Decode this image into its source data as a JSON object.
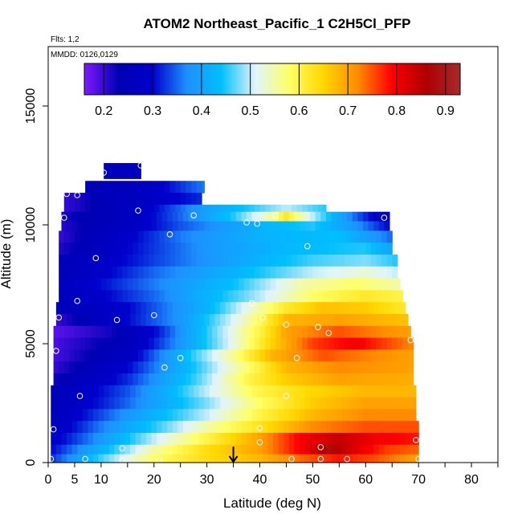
{
  "chart_data": {
    "type": "heatmap",
    "title": "ATOM2 Northeast_Pacific_1 C2H5Cl_PFP",
    "annotations": {
      "flights": "Flts: 1,2",
      "dates": "MMDD: 0126,0129"
    },
    "xlabel": "Latitude (deg N)",
    "ylabel": "Altitude (m)",
    "xlim": [
      0,
      85
    ],
    "ylim": [
      0,
      17500
    ],
    "x_ticks": [
      0,
      5,
      10,
      20,
      30,
      40,
      50,
      60,
      70,
      80
    ],
    "y_ticks": [
      0,
      5000,
      10000,
      15000
    ],
    "colorbar": {
      "range": [
        0.16,
        0.93
      ],
      "ticks": [
        0.2,
        0.3,
        0.4,
        0.5,
        0.6,
        0.7,
        0.8,
        0.9
      ],
      "tick_labels": [
        "0.2",
        "0.3",
        "0.4",
        "0.5",
        "0.6",
        "0.7",
        "0.8",
        "0.9"
      ],
      "colors": [
        "#7f1aff",
        "#0000b4",
        "#0000cd",
        "#1e90ff",
        "#00bfff",
        "#e0f4ff",
        "#ffff66",
        "#ffd700",
        "#ff8c00",
        "#ff0000",
        "#b00000",
        "#a52a2a"
      ]
    },
    "marker_latitude": 35,
    "layers": [
      {
        "alt": 12200,
        "lat_range": [
          10.5,
          17.5
        ],
        "value_points": [
          [
            10.5,
            0.25
          ],
          [
            17.5,
            0.26
          ]
        ]
      },
      {
        "alt": 11600,
        "lat_range": [
          7,
          29.5
        ],
        "value_points": [
          [
            7,
            0.24
          ],
          [
            15,
            0.25
          ],
          [
            22,
            0.3
          ],
          [
            29.5,
            0.36
          ]
        ]
      },
      {
        "alt": 11100,
        "lat_range": [
          3,
          29
        ],
        "value_points": [
          [
            3,
            0.2
          ],
          [
            12,
            0.25
          ],
          [
            20,
            0.28
          ],
          [
            29,
            0.32
          ]
        ]
      },
      {
        "alt": 10600,
        "lat_range": [
          3,
          52.5
        ],
        "value_points": [
          [
            3,
            0.2
          ],
          [
            18,
            0.28
          ],
          [
            28,
            0.38
          ],
          [
            38,
            0.45
          ],
          [
            45,
            0.5
          ],
          [
            52.5,
            0.45
          ]
        ]
      },
      {
        "alt": 10300,
        "lat_range": [
          2.5,
          64.5
        ],
        "value_points": [
          [
            2.5,
            0.22
          ],
          [
            15,
            0.26
          ],
          [
            25,
            0.35
          ],
          [
            35,
            0.45
          ],
          [
            42,
            0.55
          ],
          [
            45,
            0.62
          ],
          [
            50,
            0.5
          ],
          [
            58,
            0.35
          ],
          [
            64.5,
            0.25
          ]
        ]
      },
      {
        "alt": 9900,
        "lat_range": [
          2.5,
          64.5
        ],
        "value_points": [
          [
            2.5,
            0.21
          ],
          [
            15,
            0.27
          ],
          [
            25,
            0.34
          ],
          [
            40,
            0.42
          ],
          [
            50,
            0.45
          ],
          [
            58,
            0.38
          ],
          [
            64.5,
            0.3
          ]
        ]
      },
      {
        "alt": 9500,
        "lat_range": [
          2,
          65
        ],
        "value_points": [
          [
            2,
            0.2
          ],
          [
            12,
            0.27
          ],
          [
            25,
            0.36
          ],
          [
            40,
            0.42
          ],
          [
            55,
            0.44
          ],
          [
            65,
            0.35
          ]
        ]
      },
      {
        "alt": 9000,
        "lat_range": [
          2,
          65
        ],
        "value_points": [
          [
            2,
            0.21
          ],
          [
            15,
            0.3
          ],
          [
            30,
            0.38
          ],
          [
            45,
            0.43
          ],
          [
            60,
            0.45
          ],
          [
            65,
            0.4
          ]
        ]
      },
      {
        "alt": 8500,
        "lat_range": [
          2,
          66
        ],
        "value_points": [
          [
            2,
            0.24
          ],
          [
            20,
            0.33
          ],
          [
            35,
            0.4
          ],
          [
            50,
            0.46
          ],
          [
            60,
            0.48
          ],
          [
            66,
            0.45
          ]
        ]
      },
      {
        "alt": 8000,
        "lat_range": [
          2,
          66
        ],
        "value_points": [
          [
            2,
            0.24
          ],
          [
            20,
            0.35
          ],
          [
            35,
            0.42
          ],
          [
            50,
            0.5
          ],
          [
            60,
            0.53
          ],
          [
            66,
            0.5
          ]
        ]
      },
      {
        "alt": 7500,
        "lat_range": [
          2,
          66.5
        ],
        "value_points": [
          [
            2,
            0.26
          ],
          [
            20,
            0.36
          ],
          [
            35,
            0.44
          ],
          [
            48,
            0.55
          ],
          [
            58,
            0.58
          ],
          [
            66.5,
            0.55
          ]
        ]
      },
      {
        "alt": 7000,
        "lat_range": [
          2,
          67
        ],
        "value_points": [
          [
            2,
            0.25
          ],
          [
            20,
            0.35
          ],
          [
            38,
            0.48
          ],
          [
            50,
            0.58
          ],
          [
            60,
            0.62
          ],
          [
            67,
            0.6
          ]
        ]
      },
      {
        "alt": 6500,
        "lat_range": [
          1.5,
          67.5
        ],
        "value_points": [
          [
            1.5,
            0.24
          ],
          [
            15,
            0.3
          ],
          [
            30,
            0.42
          ],
          [
            45,
            0.62
          ],
          [
            52,
            0.67
          ],
          [
            60,
            0.66
          ],
          [
            67.5,
            0.62
          ]
        ]
      },
      {
        "alt": 6000,
        "lat_range": [
          1.5,
          68
        ],
        "value_points": [
          [
            1.5,
            0.2
          ],
          [
            12,
            0.28
          ],
          [
            25,
            0.38
          ],
          [
            38,
            0.55
          ],
          [
            45,
            0.68
          ],
          [
            55,
            0.7
          ],
          [
            68,
            0.67
          ]
        ]
      },
      {
        "alt": 5500,
        "lat_range": [
          1,
          68.5
        ],
        "value_points": [
          [
            1,
            0.18
          ],
          [
            12,
            0.22
          ],
          [
            20,
            0.3
          ],
          [
            30,
            0.45
          ],
          [
            40,
            0.6
          ],
          [
            45,
            0.7
          ],
          [
            55,
            0.75
          ],
          [
            68.5,
            0.7
          ]
        ]
      },
      {
        "alt": 5000,
        "lat_range": [
          1,
          69
        ],
        "value_points": [
          [
            1,
            0.19
          ],
          [
            15,
            0.25
          ],
          [
            25,
            0.38
          ],
          [
            35,
            0.52
          ],
          [
            42,
            0.65
          ],
          [
            50,
            0.76
          ],
          [
            58,
            0.8
          ],
          [
            69,
            0.72
          ]
        ]
      },
      {
        "alt": 4500,
        "lat_range": [
          1,
          69
        ],
        "value_points": [
          [
            1,
            0.19
          ],
          [
            15,
            0.27
          ],
          [
            25,
            0.42
          ],
          [
            35,
            0.56
          ],
          [
            42,
            0.68
          ],
          [
            52,
            0.75
          ],
          [
            62,
            0.72
          ],
          [
            69,
            0.7
          ]
        ]
      },
      {
        "alt": 4000,
        "lat_range": [
          1,
          69
        ],
        "value_points": [
          [
            1,
            0.2
          ],
          [
            15,
            0.3
          ],
          [
            28,
            0.45
          ],
          [
            38,
            0.58
          ],
          [
            45,
            0.68
          ],
          [
            55,
            0.72
          ],
          [
            69,
            0.7
          ]
        ]
      },
      {
        "alt": 3500,
        "lat_range": [
          1,
          69
        ],
        "value_points": [
          [
            1,
            0.22
          ],
          [
            15,
            0.32
          ],
          [
            28,
            0.46
          ],
          [
            38,
            0.6
          ],
          [
            45,
            0.66
          ],
          [
            55,
            0.7
          ],
          [
            69,
            0.69
          ]
        ]
      },
      {
        "alt": 3000,
        "lat_range": [
          0.5,
          69.5
        ],
        "value_points": [
          [
            0.5,
            0.24
          ],
          [
            15,
            0.34
          ],
          [
            30,
            0.5
          ],
          [
            40,
            0.6
          ],
          [
            50,
            0.65
          ],
          [
            60,
            0.68
          ],
          [
            69.5,
            0.68
          ]
        ]
      },
      {
        "alt": 2500,
        "lat_range": [
          0.5,
          69.5
        ],
        "value_points": [
          [
            0.5,
            0.24
          ],
          [
            15,
            0.35
          ],
          [
            30,
            0.48
          ],
          [
            40,
            0.58
          ],
          [
            50,
            0.66
          ],
          [
            60,
            0.7
          ],
          [
            69.5,
            0.7
          ]
        ]
      },
      {
        "alt": 2000,
        "lat_range": [
          0.5,
          69.5
        ],
        "value_points": [
          [
            0.5,
            0.25
          ],
          [
            15,
            0.38
          ],
          [
            30,
            0.5
          ],
          [
            40,
            0.6
          ],
          [
            50,
            0.68
          ],
          [
            60,
            0.72
          ],
          [
            69.5,
            0.72
          ]
        ]
      },
      {
        "alt": 1500,
        "lat_range": [
          0.5,
          70
        ],
        "value_points": [
          [
            0.5,
            0.26
          ],
          [
            10,
            0.36
          ],
          [
            20,
            0.45
          ],
          [
            30,
            0.55
          ],
          [
            40,
            0.63
          ],
          [
            50,
            0.72
          ],
          [
            60,
            0.75
          ],
          [
            70,
            0.75
          ]
        ]
      },
      {
        "alt": 1000,
        "lat_range": [
          0.5,
          70
        ],
        "value_points": [
          [
            0.5,
            0.28
          ],
          [
            10,
            0.38
          ],
          [
            20,
            0.5
          ],
          [
            30,
            0.6
          ],
          [
            40,
            0.7
          ],
          [
            48,
            0.8
          ],
          [
            55,
            0.84
          ],
          [
            62,
            0.8
          ],
          [
            70,
            0.78
          ]
        ]
      },
      {
        "alt": 500,
        "lat_range": [
          0.5,
          70
        ],
        "value_points": [
          [
            0.5,
            0.3
          ],
          [
            10,
            0.42
          ],
          [
            20,
            0.55
          ],
          [
            30,
            0.64
          ],
          [
            40,
            0.7
          ],
          [
            48,
            0.8
          ],
          [
            53,
            0.88
          ],
          [
            58,
            0.82
          ],
          [
            64,
            0.76
          ],
          [
            70,
            0.74
          ]
        ]
      },
      {
        "alt": 100,
        "lat_range": [
          0.5,
          70
        ],
        "value_points": [
          [
            0.5,
            0.32
          ],
          [
            10,
            0.46
          ],
          [
            20,
            0.58
          ],
          [
            30,
            0.64
          ],
          [
            40,
            0.68
          ],
          [
            48,
            0.74
          ],
          [
            55,
            0.78
          ],
          [
            62,
            0.75
          ],
          [
            70,
            0.7
          ]
        ]
      }
    ],
    "samples": [
      [
        10.5,
        12200
      ],
      [
        17.5,
        12500
      ],
      [
        3.5,
        11300
      ],
      [
        5.5,
        11250
      ],
      [
        17,
        10600
      ],
      [
        27.5,
        10400
      ],
      [
        3,
        10300
      ],
      [
        37.5,
        10100
      ],
      [
        39.5,
        10050
      ],
      [
        43,
        10400
      ],
      [
        63.5,
        10300
      ],
      [
        23,
        9600
      ],
      [
        9,
        8600
      ],
      [
        49,
        9100
      ],
      [
        5.5,
        6800
      ],
      [
        38.5,
        6700
      ],
      [
        20,
        6200
      ],
      [
        13,
        6000
      ],
      [
        2,
        6100
      ],
      [
        40.5,
        6100
      ],
      [
        45,
        5800
      ],
      [
        51,
        5700
      ],
      [
        53,
        5450
      ],
      [
        68.5,
        5150
      ],
      [
        1.5,
        4700
      ],
      [
        25,
        4400
      ],
      [
        22,
        4000
      ],
      [
        47,
        4400
      ],
      [
        6,
        2800
      ],
      [
        45,
        2800
      ],
      [
        1,
        1400
      ],
      [
        40,
        1450
      ],
      [
        14,
        600
      ],
      [
        40,
        850
      ],
      [
        51.5,
        650
      ],
      [
        69.5,
        950
      ],
      [
        0.5,
        150
      ],
      [
        7,
        150
      ],
      [
        14,
        100
      ],
      [
        21,
        100
      ],
      [
        46,
        150
      ],
      [
        51.5,
        150
      ],
      [
        56.5,
        150
      ],
      [
        70,
        150
      ]
    ]
  }
}
